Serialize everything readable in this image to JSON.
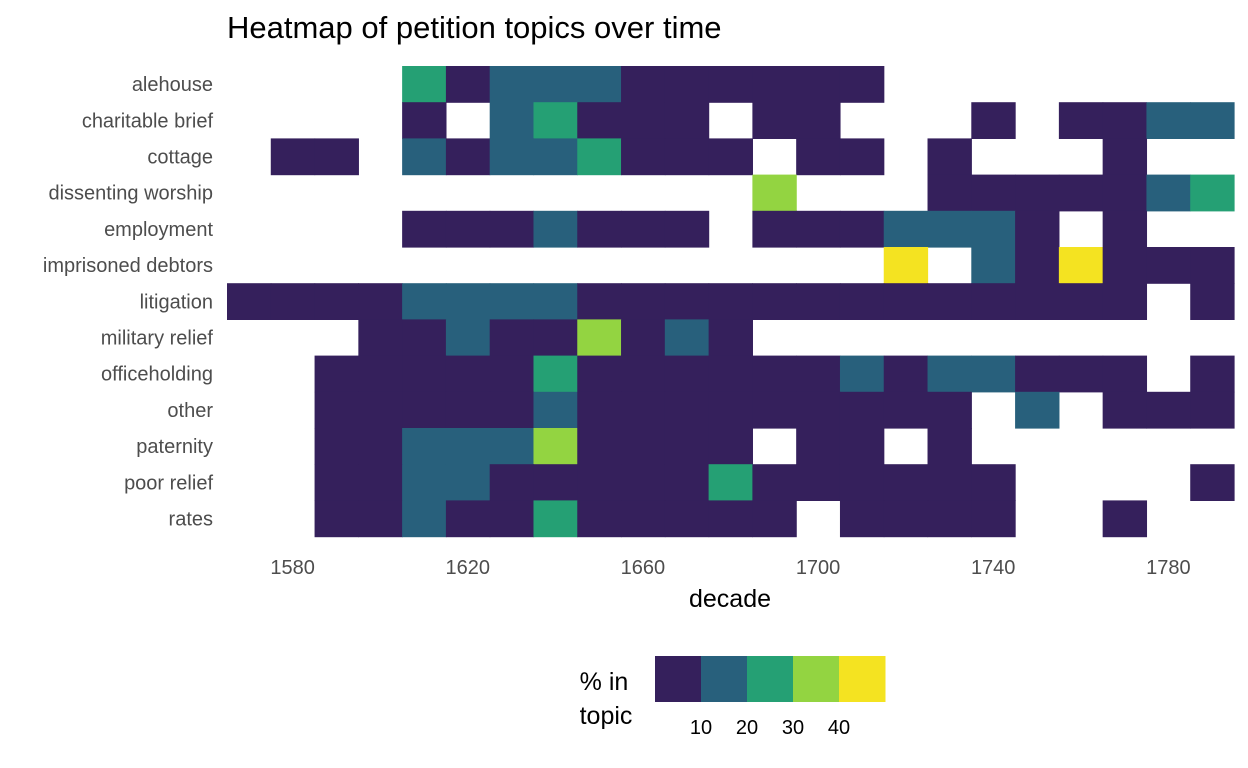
{
  "chart_data": {
    "type": "heatmap",
    "title": "Heatmap of petition topics over time",
    "xlabel": "decade",
    "ylabel": "",
    "x_ticks": [
      1580,
      1620,
      1660,
      1700,
      1740,
      1780
    ],
    "x_range": [
      1565,
      1795
    ],
    "decades": [
      1570,
      1580,
      1590,
      1600,
      1610,
      1620,
      1630,
      1640,
      1650,
      1660,
      1670,
      1680,
      1690,
      1700,
      1710,
      1720,
      1730,
      1740,
      1750,
      1760,
      1770,
      1780,
      1790
    ],
    "rows": [
      "alehouse",
      "charitable brief",
      "cottage",
      "dissenting worship",
      "employment",
      "imprisoned debtors",
      "litigation",
      "military relief",
      "officeholding",
      "other",
      "paternity",
      "poor relief",
      "rates"
    ],
    "cells": [
      [
        0,
        0,
        0,
        0,
        24,
        5,
        15,
        15,
        15,
        5,
        5,
        5,
        5,
        5,
        5,
        0,
        0,
        0,
        0,
        0,
        0,
        0,
        0
      ],
      [
        0,
        0,
        0,
        0,
        5,
        0,
        15,
        24,
        5,
        5,
        5,
        0,
        5,
        5,
        0,
        0,
        0,
        5,
        0,
        5,
        5,
        15,
        15
      ],
      [
        0,
        5,
        5,
        0,
        15,
        5,
        15,
        15,
        24,
        5,
        5,
        5,
        0,
        5,
        5,
        0,
        5,
        0,
        0,
        0,
        5,
        0,
        0
      ],
      [
        0,
        0,
        0,
        0,
        0,
        0,
        0,
        0,
        0,
        0,
        0,
        0,
        34,
        0,
        0,
        0,
        5,
        5,
        5,
        5,
        5,
        15,
        24
      ],
      [
        0,
        0,
        0,
        0,
        5,
        5,
        5,
        15,
        5,
        5,
        5,
        0,
        5,
        5,
        5,
        15,
        15,
        15,
        5,
        0,
        5,
        0,
        0
      ],
      [
        0,
        0,
        0,
        0,
        0,
        0,
        0,
        0,
        0,
        0,
        0,
        0,
        0,
        0,
        0,
        44,
        0,
        15,
        5,
        44,
        5,
        5,
        5
      ],
      [
        5,
        5,
        5,
        5,
        15,
        15,
        15,
        15,
        5,
        5,
        5,
        5,
        5,
        5,
        5,
        5,
        5,
        5,
        5,
        5,
        5,
        0,
        5
      ],
      [
        0,
        0,
        0,
        5,
        5,
        15,
        5,
        5,
        34,
        5,
        15,
        5,
        0,
        0,
        0,
        0,
        0,
        0,
        0,
        0,
        0,
        0,
        0
      ],
      [
        0,
        0,
        5,
        5,
        5,
        5,
        5,
        24,
        5,
        5,
        5,
        5,
        5,
        5,
        15,
        5,
        15,
        15,
        5,
        5,
        5,
        0,
        5
      ],
      [
        0,
        0,
        5,
        5,
        5,
        5,
        5,
        15,
        5,
        5,
        5,
        5,
        5,
        5,
        5,
        5,
        5,
        0,
        15,
        0,
        5,
        5,
        5
      ],
      [
        0,
        0,
        5,
        5,
        15,
        15,
        15,
        34,
        5,
        5,
        5,
        5,
        0,
        5,
        5,
        0,
        5,
        0,
        0,
        0,
        0,
        0,
        0
      ],
      [
        0,
        0,
        5,
        5,
        15,
        15,
        5,
        5,
        5,
        5,
        5,
        24,
        5,
        5,
        5,
        5,
        5,
        5,
        0,
        0,
        0,
        0,
        5
      ],
      [
        0,
        0,
        5,
        5,
        15,
        5,
        5,
        24,
        5,
        5,
        5,
        5,
        5,
        0,
        5,
        5,
        5,
        5,
        0,
        0,
        5,
        0,
        0
      ]
    ],
    "legend": {
      "title_lines": [
        "% in",
        "topic"
      ],
      "ticks": [
        "10",
        "20",
        "30",
        "40"
      ],
      "colors": [
        "#35205c",
        "#28607c",
        "#25a074",
        "#93d441",
        "#f4e321"
      ]
    }
  }
}
